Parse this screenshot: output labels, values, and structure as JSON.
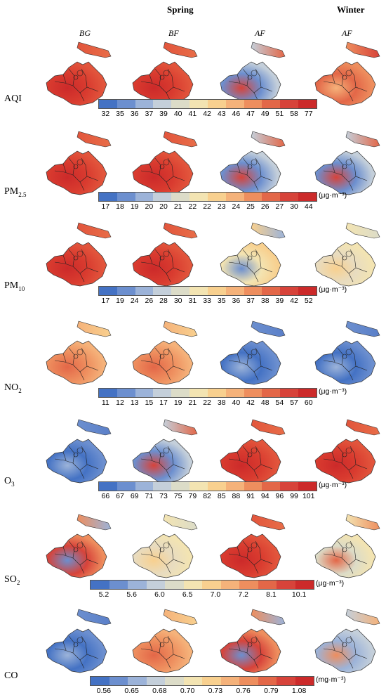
{
  "headers": {
    "spring": "Spring",
    "winter": "Winter"
  },
  "columns": [
    "BG",
    "BF",
    "AF",
    "AF"
  ],
  "rows": [
    {
      "label": "AQI",
      "sub": "",
      "unit": "",
      "ticks": [
        "32",
        "35",
        "36",
        "37",
        "39",
        "40",
        "41",
        "42",
        "43",
        "46",
        "47",
        "49",
        "51",
        "58",
        "77"
      ],
      "maps": [
        "red",
        "red",
        "blue-red",
        "red-orange"
      ]
    },
    {
      "label": "PM",
      "sub": "2.5",
      "unit": "(μg·m⁻³)",
      "ticks": [
        "17",
        "18",
        "19",
        "20",
        "20",
        "21",
        "22",
        "22",
        "23",
        "24",
        "25",
        "26",
        "27",
        "30",
        "44"
      ],
      "maps": [
        "red",
        "red",
        "blue-red",
        "blue-red"
      ]
    },
    {
      "label": "PM",
      "sub": "10",
      "unit": "(μg·m⁻³)",
      "ticks": [
        "17",
        "19",
        "24",
        "26",
        "28",
        "30",
        "31",
        "33",
        "35",
        "36",
        "37",
        "38",
        "39",
        "42",
        "52"
      ],
      "maps": [
        "red",
        "red",
        "yellow-blue",
        "yellow"
      ]
    },
    {
      "label": "NO",
      "sub": "2",
      "unit": "(μg·m⁻³)",
      "ticks": [
        "11",
        "12",
        "13",
        "15",
        "17",
        "19",
        "21",
        "22",
        "38",
        "40",
        "42",
        "48",
        "54",
        "57",
        "60"
      ],
      "maps": [
        "orange",
        "orange",
        "blue",
        "blue"
      ]
    },
    {
      "label": "O",
      "sub": "3",
      "unit": "(μg·m⁻³)",
      "ticks": [
        "66",
        "67",
        "69",
        "71",
        "73",
        "75",
        "79",
        "82",
        "85",
        "88",
        "91",
        "94",
        "96",
        "99",
        "101"
      ],
      "maps": [
        "blue",
        "blue-red",
        "red",
        "red"
      ]
    },
    {
      "label": "SO",
      "sub": "2",
      "unit": "(μg·m⁻³)",
      "ticks": [
        "5.2",
        "5.6",
        "6.0",
        "6.5",
        "7.0",
        "7.2",
        "8.1",
        "10.1"
      ],
      "maps": [
        "red-blue",
        "yellow",
        "red",
        "yellow-red"
      ]
    },
    {
      "label": "CO",
      "sub": "",
      "unit": "(mg·m⁻³)",
      "ticks": [
        "0.56",
        "0.65",
        "0.68",
        "0.70",
        "0.73",
        "0.76",
        "0.79",
        "1.08"
      ],
      "maps": [
        "blue",
        "orange",
        "red-blue",
        "blue-orange"
      ]
    }
  ],
  "colors": {
    "scale": [
      "#4472c4",
      "#6c8fcf",
      "#9cb3d9",
      "#c4cfda",
      "#dcdcc8",
      "#f3e4b2",
      "#f8d08f",
      "#f5b27a",
      "#ee8e5e",
      "#e36748",
      "#d7433a",
      "#cc2a2a"
    ]
  }
}
